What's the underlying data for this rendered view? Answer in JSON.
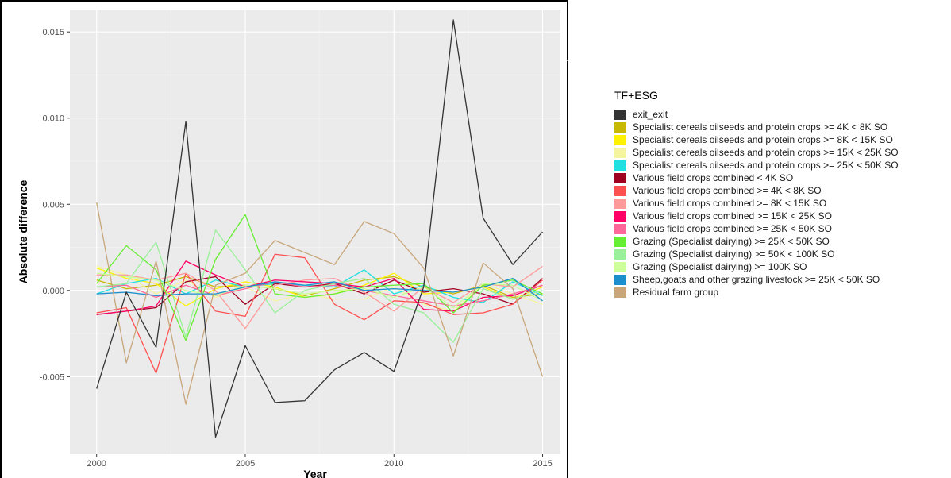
{
  "chart_data": {
    "type": "line",
    "xlabel": "Year",
    "ylabel": "Absolute difference",
    "xlim": [
      1999.1,
      2015.6
    ],
    "ylim": [
      -0.0095,
      0.0163
    ],
    "x_ticks": [
      2000,
      2005,
      2010,
      2015
    ],
    "x_tick_labels": [
      "2000",
      "2005",
      "2010",
      "2015"
    ],
    "y_ticks": [
      -0.005,
      0.0,
      0.005,
      0.01,
      0.015
    ],
    "y_tick_labels": [
      "-0.005",
      "0.000",
      "0.005",
      "0.010",
      "0.015"
    ],
    "grid": true,
    "legend_position": "right",
    "legend_title": "TF+ESG",
    "x": [
      2000,
      2001,
      2002,
      2003,
      2004,
      2005,
      2006,
      2007,
      2008,
      2009,
      2010,
      2011,
      2012,
      2013,
      2014,
      2015
    ],
    "series": [
      {
        "name": "exit_exit",
        "color": "#333333",
        "values": [
          -0.0057,
          -0.0001,
          -0.0033,
          0.0098,
          -0.0085,
          -0.0032,
          -0.0065,
          -0.0064,
          -0.0046,
          -0.0036,
          -0.0047,
          0.0002,
          0.0157,
          0.0042,
          0.0015,
          0.0034
        ]
      },
      {
        "name": "Specialist cereals oilseeds and protein crops >= 4K < 8K SO",
        "color": "#c8b800",
        "values": [
          0.0006,
          0.0001,
          0.0003,
          0.0008,
          0.0002,
          0.0003,
          0.0001,
          -0.0003,
          0.0001,
          0.0006,
          0.0008,
          0.0002,
          -0.0002,
          0.0003,
          -0.0004,
          -0.0002
        ]
      },
      {
        "name": "Specialist cereals oilseeds and protein crops >= 8K < 15K SO",
        "color": "#fff200",
        "values": [
          0.0013,
          0.0007,
          0.0004,
          -0.0009,
          0.0001,
          0.0005,
          0.0002,
          -0.0004,
          -0.0002,
          0.0003,
          0.001,
          -0.0002,
          -0.0001,
          0.0002,
          -0.0005,
          0.0002
        ]
      },
      {
        "name": "Specialist cereals oilseeds and protein crops >= 15K < 25K SO",
        "color": "#f5f5a0",
        "values": [
          0.0014,
          0.0009,
          -0.0002,
          0.0006,
          -0.0004,
          0.0002,
          -0.0006,
          -0.0002,
          -0.0005,
          -0.0005,
          0.0002,
          -0.0008,
          -0.0012,
          0.0004,
          -0.0002,
          -0.0008
        ]
      },
      {
        "name": "Specialist cereals oilseeds and protein crops >= 25K < 50K SO",
        "color": "#1ee0e0",
        "values": [
          -0.0002,
          0.0004,
          0.0007,
          -0.0002,
          0.0006,
          0.0002,
          0.0004,
          0.0003,
          0.0002,
          0.0012,
          -0.0002,
          0.0003,
          -0.0004,
          -0.0007,
          0.0005,
          -0.0003
        ]
      },
      {
        "name": "Various field crops combined  < 4K SO",
        "color": "#a00020",
        "values": [
          -0.0014,
          -0.0012,
          -0.001,
          0.0005,
          0.0008,
          -0.0008,
          0.0004,
          0.0002,
          0.0004,
          -0.0002,
          0.0006,
          -0.0001,
          0.0001,
          -0.0002,
          -0.0008,
          0.0007
        ]
      },
      {
        "name": "Various field crops combined  >= 4K < 8K SO",
        "color": "#ff5050",
        "values": [
          -0.0013,
          -0.001,
          -0.0048,
          0.001,
          -0.0012,
          -0.0015,
          0.0021,
          0.0019,
          -0.0008,
          -0.0017,
          -0.0006,
          -0.0007,
          -0.0014,
          -0.0013,
          -0.0008,
          0.0006
        ]
      },
      {
        "name": "Various field crops combined  >= 8K < 15K SO",
        "color": "#ff9a9a",
        "values": [
          0.0009,
          0.0009,
          0.0006,
          0.001,
          0.0,
          -0.0022,
          0.0003,
          0.0006,
          0.0007,
          -0.0001,
          -0.0012,
          0.0002,
          -0.0007,
          0.0004,
          0.0002,
          0.0014
        ]
      },
      {
        "name": "Various field crops combined  >= 15K < 25K SO",
        "color": "#ff0066",
        "values": [
          -0.0014,
          -0.0012,
          -0.0009,
          0.0017,
          0.0009,
          0.0002,
          0.0006,
          0.0005,
          0.0004,
          0.0002,
          0.0007,
          -0.0011,
          -0.0012,
          -0.0004,
          -0.0003,
          0.0003
        ]
      },
      {
        "name": "Various field crops combined  >= 25K < 50K SO",
        "color": "#ff6699",
        "values": [
          0.0002,
          0.0003,
          -0.0004,
          0.0003,
          -0.0003,
          0.0001,
          0.0005,
          0.0002,
          0.0003,
          0.0,
          -0.0003,
          -0.0006,
          -0.0009,
          -0.0006,
          -0.0002,
          0.0003
        ]
      },
      {
        "name": "Grazing (Specialist dairying)  >= 25K < 50K SO",
        "color": "#66ee33",
        "values": [
          0.0004,
          0.0026,
          0.0012,
          -0.0029,
          0.0018,
          0.0044,
          -0.0002,
          -0.0004,
          -0.0002,
          0.0002,
          0.0003,
          0.0004,
          -0.0013,
          0.0003,
          0.0006,
          -0.0002
        ]
      },
      {
        "name": "Grazing (Specialist dairying)  >= 50K < 100K SO",
        "color": "#99f099",
        "values": [
          0.0002,
          0.0004,
          0.0028,
          -0.0027,
          0.0035,
          0.0012,
          -0.0013,
          0.0,
          0.0004,
          0.0007,
          -0.0008,
          -0.0013,
          -0.003,
          0.0001,
          -0.0005,
          0.0
        ]
      },
      {
        "name": "Grazing (Specialist dairying)  >= 100K SO",
        "color": "#ccff99",
        "values": [
          0.001,
          0.0008,
          0.0006,
          0.0,
          -0.0003,
          0.0003,
          0.0001,
          -0.0002,
          0.0,
          0.0001,
          -0.0004,
          0.0002,
          -0.001,
          0.0004,
          0.0003,
          -0.0006
        ]
      },
      {
        "name": "Sheep,goats and other grazing livestock >= 25K < 50K SO",
        "color": "#1a8fcc",
        "values": [
          -0.0002,
          -0.0001,
          -0.0003,
          -0.0002,
          -0.0002,
          0.0002,
          0.0005,
          0.0003,
          0.0005,
          0.0,
          0.0001,
          0.0,
          -0.0001,
          0.0002,
          0.0007,
          -0.0006
        ]
      },
      {
        "name": "Residual farm group",
        "color": "#c8a67a",
        "values": [
          0.0051,
          -0.0042,
          0.0017,
          -0.0066,
          0.0003,
          0.001,
          0.0029,
          0.0022,
          0.0015,
          0.004,
          0.0033,
          0.0013,
          -0.0038,
          0.0016,
          0.0001,
          -0.005
        ]
      }
    ]
  }
}
